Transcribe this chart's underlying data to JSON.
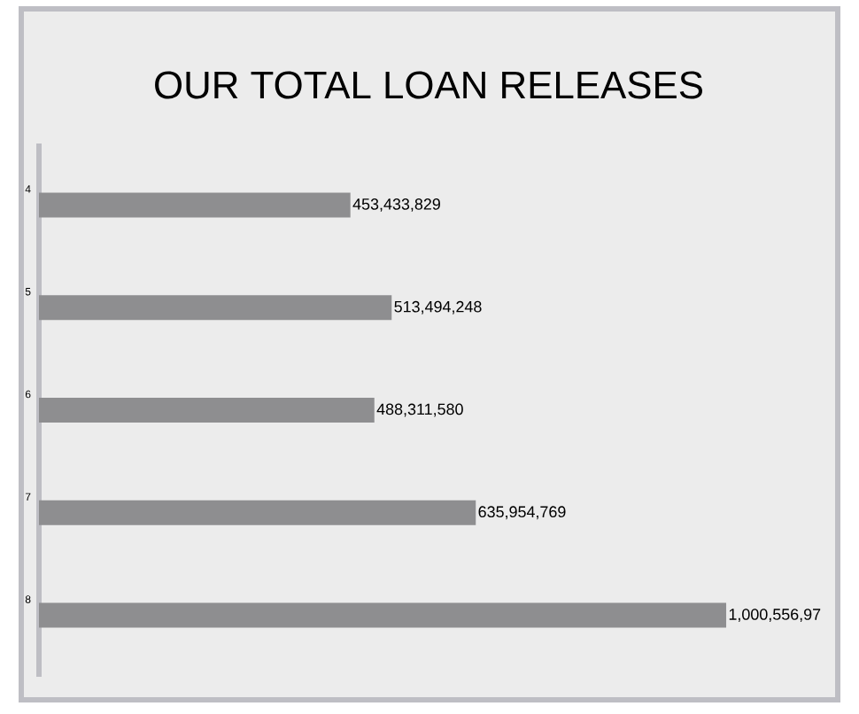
{
  "chart_data": {
    "type": "bar",
    "orientation": "horizontal",
    "title": "OUR TOTAL LOAN RELEASES",
    "categories": [
      "4",
      "5",
      "6",
      "7",
      "8"
    ],
    "values": [
      453433829,
      513494248,
      488311580,
      635954769,
      1000556970
    ],
    "value_labels": [
      "453,433,829",
      "513,494,248",
      "488,311,580",
      "635,954,769",
      "1,000,556,97"
    ],
    "color": "#8e8e90"
  }
}
